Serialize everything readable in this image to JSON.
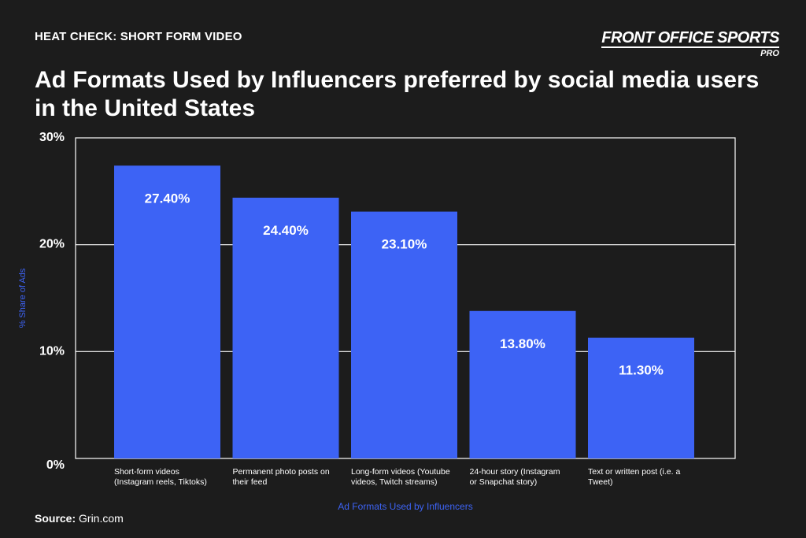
{
  "header": {
    "kicker": "HEAT CHECK: SHORT FORM VIDEO",
    "logo_main": "FRONT OFFICE SPORTS",
    "logo_sub": "PRO",
    "title": "Ad Formats Used by Influencers preferred by social media users in the United States"
  },
  "footer": {
    "source_label": "Source:",
    "source_value": "Grin.com"
  },
  "colors": {
    "background": "#1c1c1c",
    "bar": "#3d63f5",
    "axis_label": "#3d63f5",
    "grid": "#ffffff"
  },
  "chart_data": {
    "type": "bar",
    "title": "Ad Formats Used by Influencers preferred by social media users in the United States",
    "xlabel": "Ad Formats Used by Influencers",
    "ylabel": "% Share of Ads",
    "ylim": [
      0,
      30
    ],
    "yticks": [
      "0%",
      "10%",
      "20%",
      "30%"
    ],
    "grid": true,
    "categories": [
      "Short-form videos (Instagram reels, Tiktoks)",
      "Permanent photo posts on their feed",
      "Long-form videos (Youtube videos, Twitch streams)",
      "24-hour story  (Instagram or Snapchat story)",
      "Text or written post  (i.e. a Tweet)"
    ],
    "category_lines": [
      [
        "Short-form videos",
        "(Instagram reels, Tiktoks)"
      ],
      [
        "Permanent photo posts on",
        "their feed"
      ],
      [
        "Long-form videos (Youtube",
        "videos, Twitch streams)"
      ],
      [
        "24-hour story  (Instagram",
        "or Snapchat story)"
      ],
      [
        "Text or written post  (i.e. a",
        "Tweet)"
      ]
    ],
    "values": [
      27.4,
      24.4,
      23.1,
      13.8,
      11.3
    ],
    "data_labels": [
      "27.40%",
      "24.40%",
      "23.10%",
      "13.80%",
      "11.30%"
    ]
  }
}
